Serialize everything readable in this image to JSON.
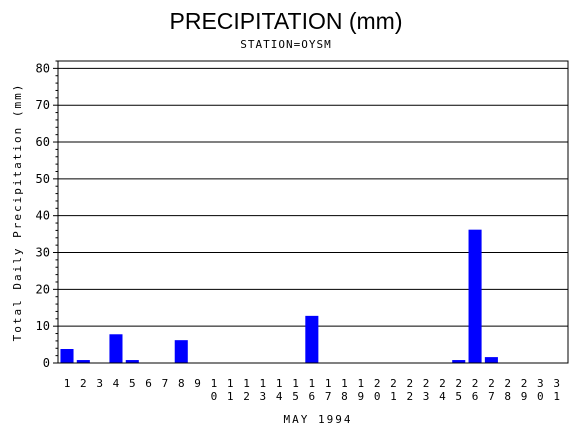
{
  "chart_data": {
    "type": "bar",
    "title": "PRECIPITATION (mm)",
    "subtitle": "STATION=OYSM",
    "xlabel": "MAY 1994",
    "ylabel": "Total Daily Precipitation (mm)",
    "ylim": [
      0,
      82
    ],
    "yticks": [
      0,
      10,
      20,
      30,
      40,
      50,
      60,
      70,
      80
    ],
    "grid": true,
    "bar_color": "#0000ff",
    "categories": [
      "1",
      "2",
      "3",
      "4",
      "5",
      "6",
      "7",
      "8",
      "9",
      "10",
      "11",
      "12",
      "13",
      "14",
      "15",
      "16",
      "17",
      "18",
      "19",
      "20",
      "21",
      "22",
      "23",
      "24",
      "25",
      "26",
      "27",
      "28",
      "29",
      "30",
      "31"
    ],
    "values": [
      3.8,
      0.8,
      0,
      7.8,
      0.8,
      0,
      0,
      6.2,
      0,
      0,
      0,
      0,
      0,
      0,
      0,
      12.8,
      0,
      0,
      0,
      0,
      0,
      0,
      0,
      0,
      0.8,
      36.2,
      1.6,
      0,
      0,
      0,
      0
    ]
  }
}
